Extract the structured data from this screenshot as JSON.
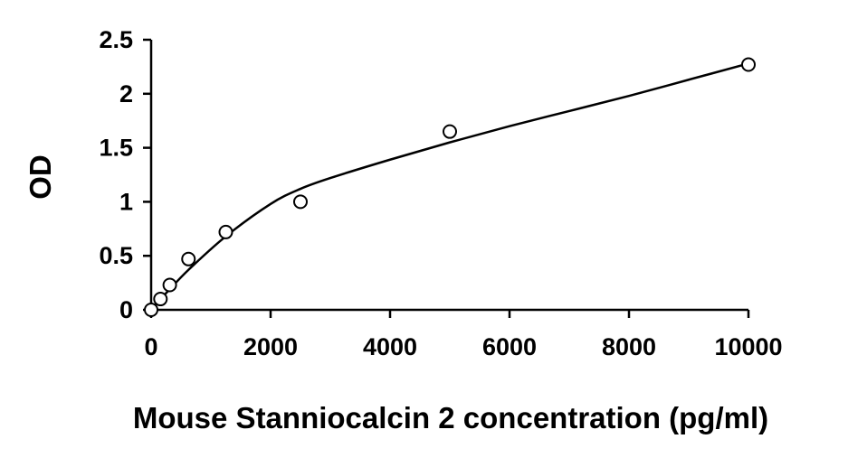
{
  "chart_data": {
    "type": "scatter",
    "title": "",
    "xlabel": "Mouse Stanniocalcin 2 concentration (pg/ml)",
    "ylabel": "OD",
    "xlim": [
      0,
      10000
    ],
    "ylim": [
      0,
      2.5
    ],
    "x_ticks": [
      0,
      2000,
      4000,
      6000,
      8000,
      10000
    ],
    "x_tick_labels": [
      "0",
      "2000",
      "4000",
      "6000",
      "8000",
      "10000"
    ],
    "y_ticks": [
      0,
      0.5,
      1,
      1.5,
      2,
      2.5
    ],
    "y_tick_labels": [
      "0",
      "0.5",
      "1",
      "1.5",
      "2",
      "2.5"
    ],
    "grid": false,
    "legend": "none",
    "series": [
      {
        "marker": "open-circle",
        "x": [
          0,
          156,
          312,
          625,
          1250,
          2500,
          5000,
          10000
        ],
        "y": [
          0.0,
          0.1,
          0.23,
          0.47,
          0.72,
          1.0,
          1.65,
          2.27
        ]
      }
    ],
    "fit_curve": {
      "x": [
        0,
        156,
        312,
        625,
        1250,
        2000,
        2500,
        3000,
        4000,
        5000,
        6000,
        7000,
        8000,
        9000,
        10000
      ],
      "y": [
        0.0,
        0.1,
        0.19,
        0.37,
        0.68,
        0.98,
        1.12,
        1.22,
        1.39,
        1.55,
        1.7,
        1.84,
        1.98,
        2.13,
        2.28
      ]
    },
    "colors": {
      "axis": "#000000",
      "marker": "#000000",
      "curve": "#000000"
    }
  }
}
